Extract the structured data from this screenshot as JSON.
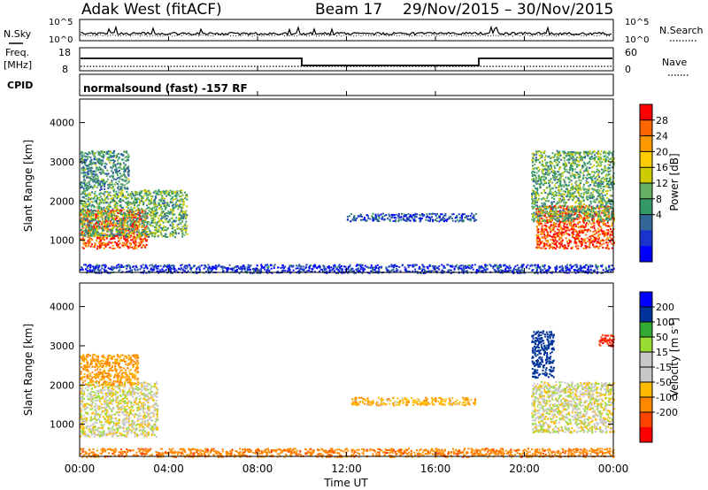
{
  "header": {
    "radar": "Adak West (fitACF)",
    "beam": "Beam 17",
    "date_range": "29/Nov/2015 – 30/Nov/2015"
  },
  "params": {
    "nsky_label": "N.Sky",
    "nsky_ticks": [
      "10^5",
      "10^0"
    ],
    "nsearch_label": "N.Search",
    "nsearch_ticks": [
      "10^5",
      "10^0"
    ],
    "freq_label": "Freq.",
    "freq_unit": "[MHz]",
    "freq_ticks": [
      "18",
      "8"
    ],
    "nave_label": "Nave",
    "nave_ticks": [
      "60",
      "0"
    ],
    "cpid_label": "CPID",
    "cpid_text": "normalsound (fast) -157 RF"
  },
  "x_axis": {
    "label": "Time UT",
    "ticks": [
      "00:00",
      "04:00",
      "08:00",
      "12:00",
      "16:00",
      "20:00",
      "00:00"
    ]
  },
  "colorbars": {
    "power": {
      "label": "Power [dB]",
      "ticks": [
        "28",
        "24",
        "20",
        "16",
        "12",
        "8",
        "4"
      ],
      "colors": [
        "#ff0000",
        "#ff6600",
        "#ff9900",
        "#ffcc00",
        "#cccc00",
        "#66b066",
        "#339966",
        "#336699",
        "#1a33cc",
        "#0000ff"
      ]
    },
    "velocity": {
      "label": "Velocity [m s",
      "label_sup": "-1",
      "label_end": "]",
      "ticks": [
        "200",
        "100",
        "50",
        "15",
        "-15",
        "-50",
        "-100",
        "-200"
      ],
      "colors": [
        "#0000ff",
        "#003399",
        "#33aa33",
        "#99dd33",
        "#c8c8c8",
        "#c8c8c8",
        "#ffbb00",
        "#ff8800",
        "#ff4400",
        "#ff0000"
      ]
    }
  },
  "chart_data": [
    {
      "type": "heatmap",
      "title": "Power",
      "xlabel": "Time UT",
      "ylabel": "Slant Range [km]",
      "x_range_hours": [
        0,
        24
      ],
      "ylim": [
        180,
        4600
      ],
      "y_ticks": [
        1000,
        2000,
        3000,
        4000
      ],
      "colorbar": "Power [dB]",
      "regions": [
        {
          "t": [
            0.0,
            3.0
          ],
          "range_km": [
            800,
            1800
          ],
          "power_db": 28
        },
        {
          "t": [
            0.0,
            4.8
          ],
          "range_km": [
            1100,
            2300
          ],
          "power_db": 14
        },
        {
          "t": [
            0.0,
            2.2
          ],
          "range_km": [
            2300,
            3300
          ],
          "power_db": 12
        },
        {
          "t": [
            12.0,
            17.8
          ],
          "range_km": [
            1500,
            1700
          ],
          "power_db": 7
        },
        {
          "t": [
            20.5,
            24.0
          ],
          "range_km": [
            800,
            1900
          ],
          "power_db": 28
        },
        {
          "t": [
            20.3,
            24.0
          ],
          "range_km": [
            1500,
            3300
          ],
          "power_db": 14
        },
        {
          "t": [
            0.0,
            24.0
          ],
          "range_km": [
            180,
            400
          ],
          "power_db": 6
        }
      ]
    },
    {
      "type": "heatmap",
      "title": "Velocity",
      "xlabel": "Time UT",
      "ylabel": "Slant Range [km]",
      "x_range_hours": [
        0,
        24
      ],
      "ylim": [
        180,
        4600
      ],
      "y_ticks": [
        1000,
        2000,
        3000,
        4000
      ],
      "colorbar": "Velocity [m s-1]",
      "regions": [
        {
          "t": [
            0.0,
            3.5
          ],
          "range_km": [
            700,
            2100
          ],
          "velocity_ms": 0
        },
        {
          "t": [
            0.0,
            2.6
          ],
          "range_km": [
            2000,
            2800
          ],
          "velocity_ms": -60
        },
        {
          "t": [
            12.2,
            17.8
          ],
          "range_km": [
            1500,
            1700
          ],
          "velocity_ms": -40
        },
        {
          "t": [
            20.3,
            24.0
          ],
          "range_km": [
            800,
            2100
          ],
          "velocity_ms": 0
        },
        {
          "t": [
            20.3,
            21.3
          ],
          "range_km": [
            2200,
            3400
          ],
          "velocity_ms": 150
        },
        {
          "t": [
            23.3,
            24.0
          ],
          "range_km": [
            3000,
            3300
          ],
          "velocity_ms": -200
        },
        {
          "t": [
            0.0,
            24.0
          ],
          "range_km": [
            180,
            400
          ],
          "velocity_ms": -80
        }
      ]
    }
  ]
}
